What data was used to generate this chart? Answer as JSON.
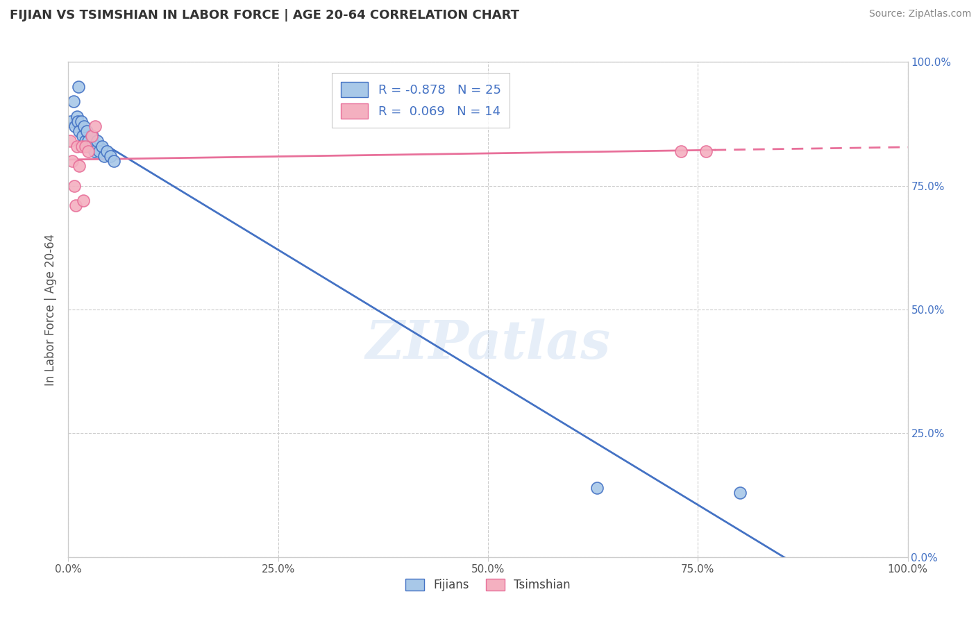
{
  "title": "FIJIAN VS TSIMSHIAN IN LABOR FORCE | AGE 20-64 CORRELATION CHART",
  "source": "Source: ZipAtlas.com",
  "ylabel": "In Labor Force | Age 20-64",
  "fijian_R": -0.878,
  "fijian_N": 25,
  "tsimshian_R": 0.069,
  "tsimshian_N": 14,
  "fijian_color": "#a8c8e8",
  "tsimshian_color": "#f4b0c0",
  "fijian_line_color": "#4472c4",
  "tsimshian_line_color": "#e8709a",
  "background_color": "#ffffff",
  "watermark": "ZIPatlas",
  "fijian_x": [
    0.3,
    0.6,
    0.8,
    1.0,
    1.1,
    1.3,
    1.5,
    1.7,
    1.9,
    2.0,
    2.2,
    2.4,
    2.6,
    2.9,
    3.1,
    3.4,
    3.7,
    4.0,
    4.3,
    4.6,
    5.0,
    5.4,
    1.2,
    63.0,
    80.0
  ],
  "fijian_y": [
    88,
    92,
    87,
    89,
    88,
    86,
    88,
    85,
    87,
    84,
    86,
    84,
    83,
    85,
    82,
    84,
    82,
    83,
    81,
    82,
    81,
    80,
    95,
    14,
    13
  ],
  "tsimshian_x": [
    0.2,
    0.5,
    0.7,
    1.0,
    1.3,
    1.6,
    2.0,
    2.4,
    0.9,
    1.8,
    73.0,
    76.0,
    2.8,
    3.2
  ],
  "tsimshian_y": [
    84,
    80,
    75,
    83,
    79,
    83,
    83,
    82,
    71,
    72,
    82,
    82,
    85,
    87
  ],
  "fijian_line_start_x": 0,
  "fijian_line_end_x": 100,
  "tsimshian_solid_end_x": 77,
  "tsimshian_dashed_end_x": 100,
  "xlim": [
    0,
    100
  ],
  "ylim": [
    0,
    100
  ],
  "xticks": [
    0,
    25,
    50,
    75,
    100
  ],
  "yticks": [
    0,
    25,
    50,
    75,
    100
  ],
  "xticklabels": [
    "0.0%",
    "25.0%",
    "50.0%",
    "75.0%",
    "100.0%"
  ],
  "yticklabels": [
    "0.0%",
    "25.0%",
    "50.0%",
    "75.0%",
    "100.0%"
  ],
  "grid_color": "#cccccc",
  "title_color": "#333333",
  "axis_label_color": "#555555",
  "tick_color": "#555555",
  "right_tick_color": "#4472c4",
  "legend_fijian_label": "R = -0.878   N = 25",
  "legend_tsimshian_label": "R =  0.069   N = 14",
  "legend_color": "#4472c4"
}
